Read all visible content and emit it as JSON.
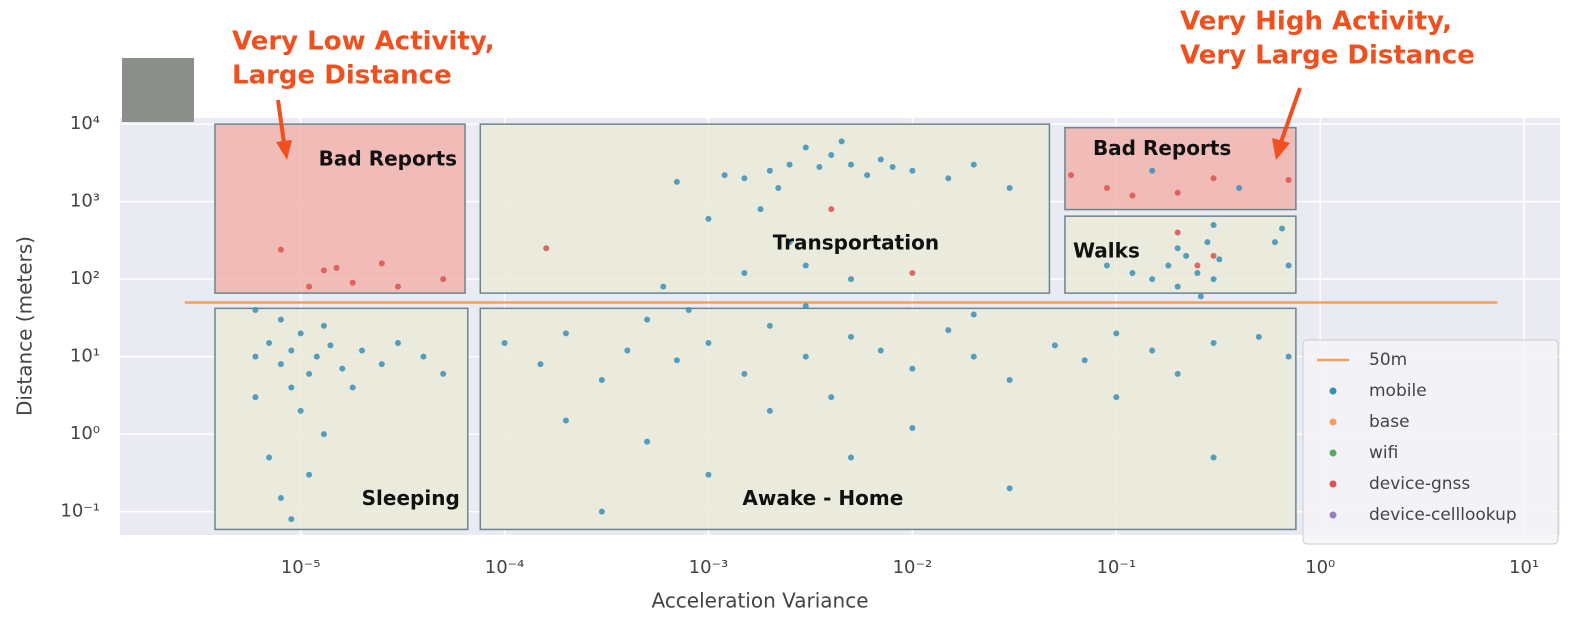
{
  "chart_data": {
    "type": "scatter",
    "annotations": [
      {
        "lines": [
          "Very Low Activity,",
          "Large Distance"
        ],
        "color": "#f0501e"
      },
      {
        "lines": [
          "Very High Activity,",
          "Very Large Distance"
        ],
        "color": "#f0501e"
      }
    ],
    "xlabel": "Acceleration Variance",
    "ylabel": "Distance (meters)",
    "log_x": true,
    "log_y": true,
    "grid": true,
    "xlim": [
      1.3e-06,
      15
    ],
    "ylim": [
      0.05,
      12000
    ],
    "xticks": [
      {
        "value": 1e-05,
        "label": "10⁻⁵"
      },
      {
        "value": 0.0001,
        "label": "10⁻⁴"
      },
      {
        "value": 0.001,
        "label": "10⁻³"
      },
      {
        "value": 0.01,
        "label": "10⁻²"
      },
      {
        "value": 0.1,
        "label": "10⁻¹"
      },
      {
        "value": 1,
        "label": "10⁰"
      },
      {
        "value": 10,
        "label": "10¹"
      }
    ],
    "yticks": [
      {
        "value": 0.1,
        "label": "10⁻¹"
      },
      {
        "value": 1,
        "label": "10⁰"
      },
      {
        "value": 10,
        "label": "10¹"
      },
      {
        "value": 100,
        "label": "10²"
      },
      {
        "value": 1000,
        "label": "10³"
      },
      {
        "value": 10000,
        "label": "10⁴"
      }
    ],
    "regions": [
      {
        "label": "Bad Reports",
        "x": [
          3.8e-06,
          6.4e-05
        ],
        "y": [
          66,
          10000
        ],
        "color": "#f2b3ad"
      },
      {
        "label": "Transportation",
        "x": [
          7.6e-05,
          0.047
        ],
        "y": [
          66,
          10000
        ],
        "color": "#ebebd9"
      },
      {
        "label": "Bad Reports",
        "x": [
          0.056,
          0.76
        ],
        "y": [
          790,
          9000
        ],
        "color": "#f2b3ad"
      },
      {
        "label": "Walks",
        "x": [
          0.056,
          0.76
        ],
        "y": [
          66,
          650
        ],
        "color": "#ebebd9"
      },
      {
        "label": "Sleeping",
        "x": [
          3.8e-06,
          6.6e-05
        ],
        "y": [
          0.059,
          42
        ],
        "color": "#ebebd9"
      },
      {
        "label": "Awake - Home",
        "x": [
          7.6e-05,
          0.76
        ],
        "y": [
          0.059,
          42
        ],
        "color": "#ebebd9"
      }
    ],
    "legend": "lower right",
    "series": [
      {
        "name": "50m",
        "kind": "line",
        "color": "#f5a05a",
        "x": [
          2.7e-06,
          7.4
        ],
        "values": [
          50,
          50
        ]
      },
      {
        "name": "mobile",
        "color": "#3a8fb7",
        "x": [
          6e-06,
          7e-06,
          8e-06,
          9e-06,
          1e-05,
          1.1e-05,
          1.2e-05,
          1.4e-05,
          1.6e-05,
          8e-06,
          9e-06,
          1e-05,
          7e-06,
          8e-06,
          9e-06,
          1.1e-05,
          1.3e-05,
          6e-06,
          2e-05,
          2.5e-05,
          3e-05,
          4e-05,
          5e-05,
          6e-06,
          1.3e-05,
          1.8e-05,
          0.0001,
          0.00015,
          0.0002,
          0.0003,
          0.0004,
          0.0005,
          0.0007,
          0.001,
          0.0015,
          0.002,
          0.003,
          0.004,
          0.005,
          0.007,
          0.01,
          0.015,
          0.02,
          0.03,
          0.05,
          0.07,
          0.1,
          0.15,
          0.2,
          0.3,
          0.5,
          0.7,
          0.0002,
          0.0005,
          0.001,
          0.002,
          0.005,
          0.01,
          0.03,
          0.1,
          0.3,
          0.0003,
          0.0008,
          0.003,
          0.02,
          0.0015,
          0.002,
          0.0025,
          0.003,
          0.0035,
          0.004,
          0.005,
          0.006,
          0.007,
          0.008,
          0.0045,
          0.0022,
          0.0012,
          0.01,
          0.015,
          0.0018,
          0.0025,
          0.0015,
          0.003,
          0.001,
          0.0007,
          0.02,
          0.03,
          0.0006,
          0.005,
          0.15,
          0.18,
          0.2,
          0.22,
          0.25,
          0.28,
          0.3,
          0.32,
          0.26,
          0.2,
          0.12,
          0.09,
          0.6,
          0.7,
          0.65,
          0.3,
          0.15,
          0.4
        ],
        "values": [
          10,
          15,
          8,
          12,
          20,
          6,
          10,
          14,
          7,
          30,
          4,
          2,
          0.5,
          0.15,
          0.08,
          0.3,
          1,
          3,
          12,
          8,
          15,
          10,
          6,
          40,
          25,
          4,
          15,
          8,
          20,
          5,
          12,
          30,
          9,
          15,
          6,
          25,
          10,
          3,
          18,
          12,
          7,
          22,
          10,
          5,
          14,
          9,
          20,
          12,
          6,
          15,
          18,
          10,
          1.5,
          0.8,
          0.3,
          2,
          0.5,
          1.2,
          0.2,
          3,
          0.5,
          0.1,
          40,
          45,
          35,
          2000,
          2500,
          3000,
          5000,
          2800,
          4000,
          3000,
          2200,
          3500,
          2800,
          6000,
          1500,
          2200,
          2500,
          2000,
          800,
          300,
          120,
          150,
          600,
          1800,
          3000,
          1500,
          80,
          100,
          100,
          150,
          80,
          200,
          120,
          300,
          100,
          180,
          60,
          250,
          120,
          150,
          300,
          150,
          450,
          500,
          2500,
          1500
        ]
      },
      {
        "name": "base",
        "color": "#f5a05a",
        "x": [],
        "values": []
      },
      {
        "name": "wifi",
        "color": "#55a868",
        "x": [],
        "values": []
      },
      {
        "name": "device-gnss",
        "color": "#d9534f",
        "x": [
          8e-06,
          1.1e-05,
          1.3e-05,
          1.5e-05,
          1.8e-05,
          2.5e-05,
          3e-05,
          5e-05,
          0.00016,
          0.01,
          0.004,
          0.06,
          0.09,
          0.12,
          0.2,
          0.3,
          0.7,
          0.2,
          0.25,
          0.3
        ],
        "values": [
          240,
          80,
          130,
          140,
          90,
          160,
          80,
          100,
          250,
          120,
          800,
          2200,
          1500,
          1200,
          1300,
          2000,
          1900,
          400,
          150,
          200
        ]
      },
      {
        "name": "device-celllookup",
        "color": "#9a7fc0",
        "x": [],
        "values": []
      }
    ]
  }
}
